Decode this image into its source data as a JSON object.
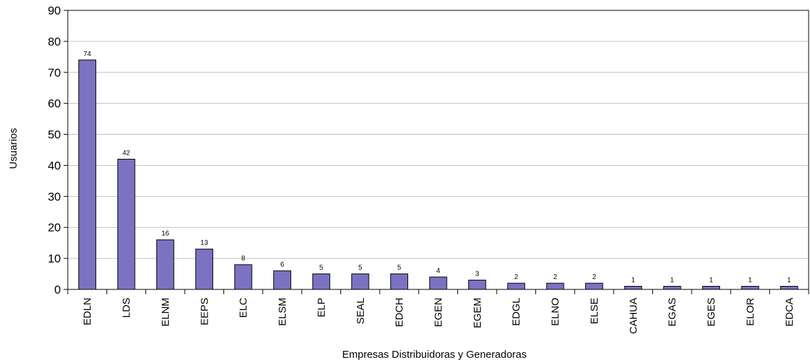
{
  "chart_data": {
    "type": "bar",
    "xlabel": "Empresas Distribuidoras y Generadoras",
    "ylabel": "Usuarios",
    "ylim": [
      0,
      90
    ],
    "yticks": [
      0,
      10,
      20,
      30,
      40,
      50,
      60,
      70,
      80,
      90
    ],
    "grid": true,
    "categories": [
      "EDLN",
      "LDS",
      "ELNM",
      "EEPS",
      "ELC",
      "ELSM",
      "ELP",
      "SEAL",
      "EDCH",
      "EGEN",
      "EGEM",
      "EDGL",
      "ELNO",
      "ELSE",
      "CAHUA",
      "EGAS",
      "EGES",
      "ELOR",
      "EDCA"
    ],
    "values": [
      74,
      42,
      16,
      13,
      8,
      6,
      5,
      5,
      5,
      4,
      3,
      2,
      2,
      2,
      1,
      1,
      1,
      1,
      1
    ],
    "bar_color": "#7b72c2"
  }
}
